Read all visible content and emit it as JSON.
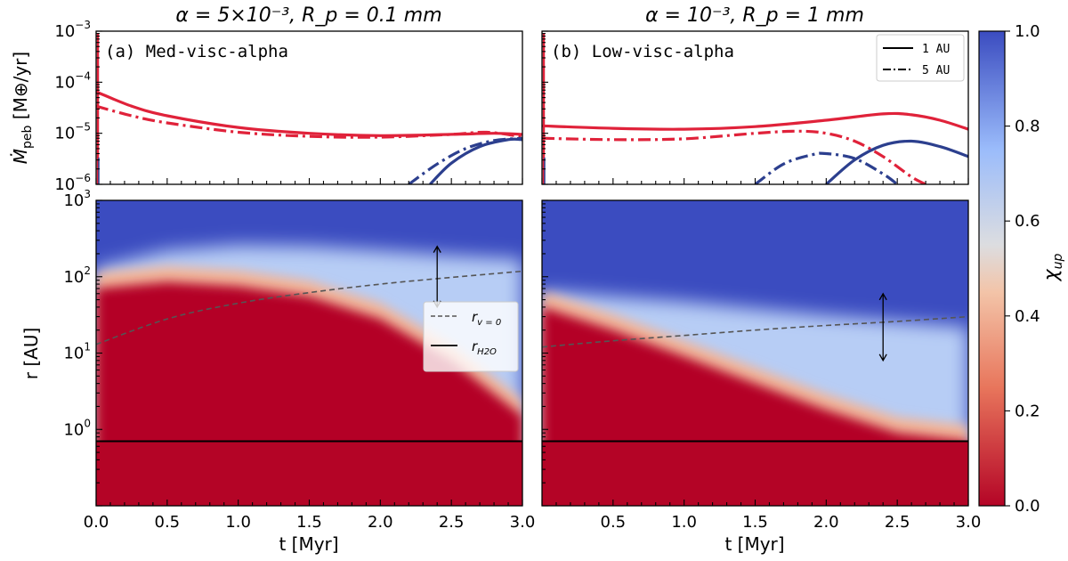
{
  "chart_data": [
    {
      "type": "line",
      "panel": "top-left",
      "title": "α = 5×10⁻³, R_p = 0.1 mm",
      "annotation": "(a) Med-visc-alpha",
      "ylabel": "Ṁ_peb [M⊕/yr]",
      "xlabel": "",
      "xlim": [
        0,
        3
      ],
      "ylim": [
        1e-06,
        0.001
      ],
      "yscale": "log",
      "series": [
        {
          "name": "1 AU",
          "color": "#e0223a",
          "style": "solid",
          "x": [
            0.0,
            0.25,
            0.5,
            1.0,
            1.5,
            2.0,
            2.5,
            2.8,
            3.0
          ],
          "y": [
            6.5e-05,
            3.4e-05,
            2.2e-05,
            1.3e-05,
            1e-05,
            9e-06,
            9.5e-06,
            1e-05,
            9.5e-06
          ]
        },
        {
          "name": "5 AU",
          "color": "#e0223a",
          "style": "dashdot",
          "x": [
            0.0,
            0.25,
            0.5,
            1.0,
            1.5,
            2.0,
            2.5,
            2.75,
            3.0
          ],
          "y": [
            3.4e-05,
            2.2e-05,
            1.6e-05,
            1.05e-05,
            8.7e-06,
            8.4e-06,
            9.5e-06,
            1.05e-05,
            8.5e-06
          ]
        },
        {
          "name": "1 AU",
          "color": "#2c3f8e",
          "style": "solid",
          "x": [
            2.35,
            2.5,
            2.7,
            2.9,
            3.0
          ],
          "y": [
            1e-06,
            2.6e-06,
            5.5e-06,
            7.5e-06,
            7.5e-06
          ]
        },
        {
          "name": "5 AU",
          "color": "#2c3f8e",
          "style": "dashdot",
          "x": [
            2.2,
            2.4,
            2.6,
            2.8,
            3.0
          ],
          "y": [
            1e-06,
            2.5e-06,
            5e-06,
            7.2e-06,
            8e-06
          ]
        }
      ]
    },
    {
      "type": "line",
      "panel": "top-right",
      "title": "α = 10⁻³, R_p = 1 mm",
      "annotation": "(b) Low-visc-alpha",
      "xlim": [
        0,
        3
      ],
      "ylim": [
        1e-06,
        0.001
      ],
      "yscale": "log",
      "legend": [
        {
          "label": "1 AU",
          "style": "solid"
        },
        {
          "label": "5 AU",
          "style": "dashdot"
        }
      ],
      "series": [
        {
          "name": "1 AU",
          "color": "#e0223a",
          "style": "solid",
          "x": [
            0.0,
            0.5,
            1.0,
            1.5,
            2.0,
            2.4,
            2.6,
            2.8,
            3.0
          ],
          "y": [
            1.4e-05,
            1.25e-05,
            1.2e-05,
            1.35e-05,
            1.8e-05,
            2.4e-05,
            2.3e-05,
            1.8e-05,
            1.2e-05
          ]
        },
        {
          "name": "5 AU",
          "color": "#e0223a",
          "style": "dashdot",
          "x": [
            0.0,
            0.5,
            1.0,
            1.5,
            1.8,
            2.0,
            2.2,
            2.4,
            2.6,
            2.7
          ],
          "y": [
            8e-06,
            7.5e-06,
            7.8e-06,
            1e-05,
            1.1e-05,
            1e-05,
            7e-06,
            3.5e-06,
            1.4e-06,
            1e-06
          ]
        },
        {
          "name": "1 AU",
          "color": "#2c3f8e",
          "style": "solid",
          "x": [
            2.0,
            2.2,
            2.4,
            2.6,
            2.8,
            3.0
          ],
          "y": [
            1e-06,
            3e-06,
            5.8e-06,
            7e-06,
            5.5e-06,
            3.5e-06
          ]
        },
        {
          "name": "5 AU",
          "color": "#2c3f8e",
          "style": "dashdot",
          "x": [
            1.5,
            1.7,
            1.9,
            2.0,
            2.2,
            2.4,
            2.5
          ],
          "y": [
            1e-06,
            2.5e-06,
            3.8e-06,
            4e-06,
            3.2e-06,
            1.6e-06,
            1e-06
          ]
        }
      ]
    },
    {
      "type": "heatmap",
      "panel": "bottom-left",
      "xlabel": "t [Myr]",
      "ylabel": "r [AU]",
      "xlim": [
        0,
        3
      ],
      "ylim": [
        0.1,
        1000
      ],
      "yscale": "log",
      "snowline_label": "r_H2O",
      "snowline_r": 0.7,
      "rv0_label": "r_v=0",
      "rv0": {
        "x": [
          0,
          0.5,
          1.0,
          1.5,
          2.0,
          2.5,
          3.0
        ],
        "r": [
          13,
          28,
          45,
          62,
          80,
          98,
          118
        ]
      },
      "transition_r": {
        "x": [
          0,
          0.5,
          1.0,
          1.5,
          2.0,
          2.5,
          3.0
        ],
        "r": [
          70,
          85,
          75,
          55,
          28,
          8,
          1.5
        ]
      },
      "outer_blue_r": {
        "x": [
          0,
          0.5,
          1.0,
          1.5,
          2.0,
          2.5,
          3.0
        ],
        "r": [
          130,
          220,
          260,
          250,
          220,
          190,
          170
        ]
      },
      "arrow": {
        "x": 2.4,
        "r_low": 40,
        "r_high": 250
      },
      "ticks_x": [
        0.0,
        0.5,
        1.0,
        1.5,
        2.0,
        2.5,
        3.0
      ],
      "legend": [
        "r_v=0",
        "r_H2O"
      ]
    },
    {
      "type": "heatmap",
      "panel": "bottom-right",
      "xlabel": "t [Myr]",
      "xlim": [
        0,
        3
      ],
      "ylim": [
        0.1,
        1000
      ],
      "yscale": "log",
      "snowline_r": 0.7,
      "rv0": {
        "x": [
          0,
          0.5,
          1.0,
          1.5,
          2.0,
          2.5,
          3.0
        ],
        "r": [
          12,
          14.5,
          17,
          20,
          23,
          26,
          30
        ]
      },
      "transition_r": {
        "x": [
          0,
          0.5,
          1.0,
          1.5,
          2.0,
          2.5,
          3.0
        ],
        "r": [
          40,
          20,
          9,
          4,
          1.8,
          0.9,
          0.7
        ]
      },
      "outer_blue_r": {
        "x": [
          0,
          0.5,
          1.0,
          1.5,
          2.0,
          2.5,
          3.0
        ],
        "r": [
          65,
          55,
          47,
          38,
          31,
          26,
          22
        ]
      },
      "arrow": {
        "x": 2.4,
        "r_low": 8,
        "r_high": 60
      },
      "ticks_x": [
        0.5,
        1.0,
        1.5,
        2.0,
        2.5,
        3.0
      ]
    }
  ],
  "colorbar": {
    "label": "χ_up",
    "ticks": [
      "0.0",
      "0.2",
      "0.4",
      "0.6",
      "0.8",
      "1.0"
    ],
    "colors": {
      "low": "#b40426",
      "mid": "#dddcdc",
      "high": "#3b4cc0"
    }
  },
  "text": {
    "title_left": "α = 5×10⁻³, R_p = 0.1 mm",
    "title_right": "α = 10⁻³, R_p = 1 mm",
    "ann_a": "(a) Med-visc-alpha",
    "ann_b": "(b) Low-visc-alpha",
    "ylabel_top_main": "Ṁ",
    "ylabel_top_sub": "peb",
    "ylabel_top_units": " [M⊕/yr]",
    "ylabel_bottom": "r [AU]",
    "xlabel": "t [Myr]",
    "legend_1au": "1 AU",
    "legend_5au": "5 AU",
    "legend_rv0_main": "r",
    "legend_rv0_sub": "v = 0",
    "legend_rh2o_main": "r",
    "legend_rh2o_sub": "H2O",
    "cbar_label_main": "χ",
    "cbar_label_sub": "up"
  }
}
